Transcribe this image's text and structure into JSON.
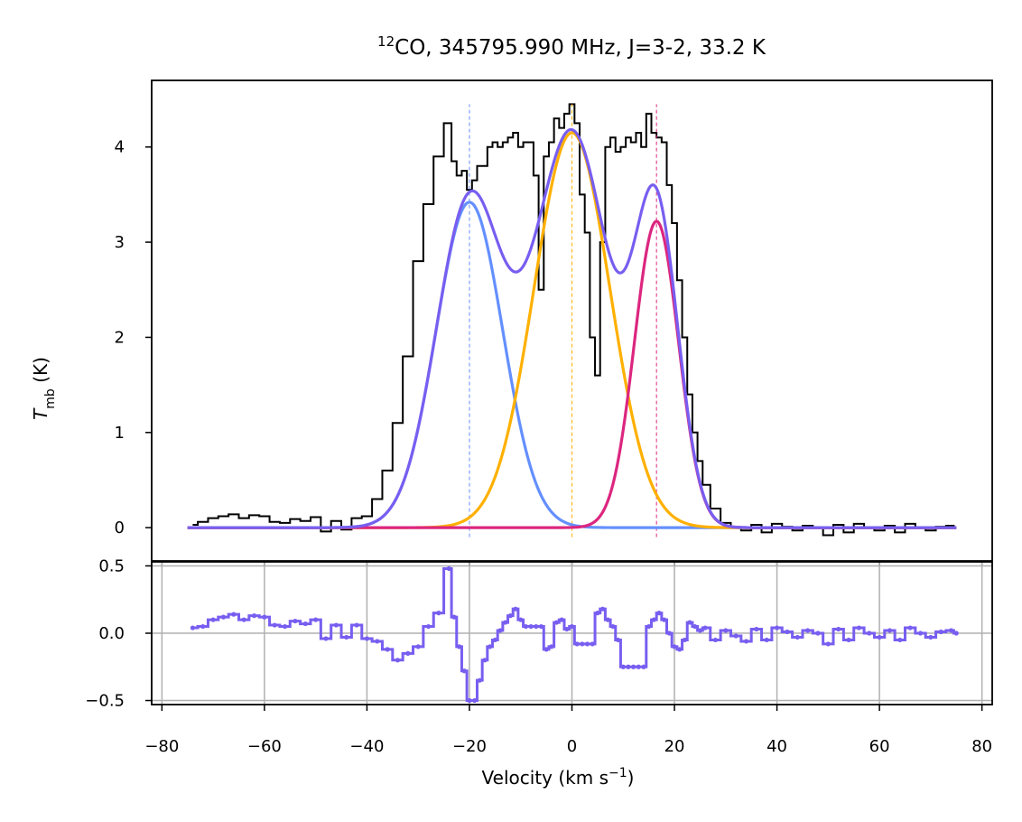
{
  "chart_data": [
    {
      "type": "line",
      "panel": "spectrum",
      "title": "12CO, 345795.990 MHz, J=3-2, 33.2 K",
      "title_parts": {
        "sup": "12",
        "rest": "CO, 345795.990 MHz, J=3-2, 33.2 K"
      },
      "xlabel": "",
      "ylabel": "T_mb (K)",
      "ylabel_parts": {
        "main": "T",
        "sub": "mb",
        "unit": " (K)"
      },
      "xlim": [
        -82,
        82
      ],
      "ylim": [
        -0.35,
        4.7
      ],
      "yticks": [
        0,
        1,
        2,
        3,
        4
      ],
      "ytick_labels": [
        "0",
        "1",
        "2",
        "3",
        "4"
      ],
      "grid": false,
      "observed_spectrum": {
        "name": "Observed T_mb",
        "style": "step",
        "color": "#000000",
        "x": [
          -74,
          -72,
          -70,
          -68,
          -66,
          -64,
          -62,
          -60,
          -58,
          -56,
          -54,
          -52,
          -50,
          -48,
          -46,
          -44,
          -42,
          -40,
          -38,
          -36,
          -34,
          -32,
          -30,
          -28,
          -26,
          -24,
          -23,
          -22,
          -21,
          -20,
          -19,
          -18,
          -17,
          -16,
          -15,
          -14,
          -13,
          -12,
          -11,
          -10,
          -9,
          -8,
          -7,
          -6,
          -5,
          -4,
          -3,
          -2,
          -1,
          0,
          1,
          2,
          3,
          4,
          5,
          6,
          7,
          8,
          9,
          10,
          11,
          12,
          13,
          14,
          15,
          16,
          17,
          18,
          19,
          20,
          21,
          22,
          23,
          24,
          25,
          26,
          28,
          30,
          32,
          34,
          36,
          38,
          40,
          42,
          44,
          46,
          48,
          50,
          52,
          54,
          56,
          58,
          60,
          62,
          64,
          66,
          68,
          70,
          72,
          74,
          75
        ],
        "y": [
          0.03,
          0.06,
          0.1,
          0.12,
          0.14,
          0.1,
          0.13,
          0.12,
          0.06,
          0.05,
          0.09,
          0.07,
          0.11,
          -0.04,
          0.07,
          -0.02,
          0.1,
          0.12,
          0.3,
          0.6,
          1.1,
          1.8,
          2.8,
          3.4,
          3.9,
          4.25,
          3.85,
          3.7,
          3.75,
          3.55,
          3.65,
          3.8,
          3.8,
          4.0,
          4.05,
          4.0,
          4.05,
          4.1,
          4.15,
          4.0,
          4.05,
          4.05,
          3.7,
          2.5,
          3.9,
          4.05,
          4.3,
          4.2,
          4.35,
          4.45,
          4.25,
          3.5,
          3.1,
          2.0,
          1.6,
          3.0,
          4.0,
          4.1,
          3.95,
          4.0,
          4.1,
          4.05,
          4.15,
          4.0,
          4.35,
          4.15,
          4.1,
          4.05,
          3.6,
          3.2,
          2.6,
          2.0,
          1.4,
          1.0,
          0.7,
          0.45,
          0.2,
          0.05,
          0.0,
          -0.03,
          0.03,
          -0.05,
          0.04,
          0.01,
          -0.03,
          0.02,
          0.0,
          -0.08,
          0.03,
          -0.05,
          0.04,
          0.0,
          -0.03,
          0.02,
          -0.05,
          0.04,
          0.0,
          -0.03,
          0.01,
          0.02,
          0.0
        ]
      },
      "gaussian_components": [
        {
          "name": "component 1",
          "color": "#648FFF",
          "center": -20.0,
          "amplitude": 3.42,
          "sigma": 6.5
        },
        {
          "name": "component 2",
          "color": "#FFB000",
          "center": 0.0,
          "amplitude": 4.15,
          "sigma": 7.4
        },
        {
          "name": "component 3",
          "color": "#DC267F",
          "center": 16.5,
          "amplitude": 3.22,
          "sigma": 4.3
        }
      ],
      "total_fit": {
        "name": "total fit",
        "color": "#785EF0"
      },
      "component_markers": [
        -20.0,
        0.0,
        16.5
      ]
    },
    {
      "type": "line",
      "panel": "residual",
      "title": "",
      "xlabel": "Velocity (km s-1)",
      "xlabel_parts": {
        "main": "Velocity (km s",
        "sup": "−1",
        "close": ")"
      },
      "ylabel": "",
      "xlim": [
        -82,
        82
      ],
      "ylim": [
        -0.53,
        0.53
      ],
      "xticks": [
        -80,
        -60,
        -40,
        -20,
        0,
        20,
        40,
        60,
        80
      ],
      "xtick_labels": [
        "−80",
        "−60",
        "−40",
        "−20",
        "0",
        "20",
        "40",
        "60",
        "80"
      ],
      "yticks": [
        -0.5,
        0.0,
        0.5
      ],
      "ytick_labels": [
        "−0.5",
        "0.0",
        "0.5"
      ],
      "grid": true,
      "residual": {
        "name": "residual",
        "style": "step",
        "color": "#785EF0",
        "x": [
          -74,
          -72,
          -70,
          -68,
          -66,
          -64,
          -62,
          -60,
          -58,
          -56,
          -54,
          -52,
          -50,
          -48,
          -46,
          -44,
          -42,
          -40,
          -38,
          -36,
          -34,
          -32,
          -30,
          -28,
          -26,
          -24,
          -23,
          -22,
          -21,
          -20,
          -19,
          -18,
          -17,
          -16,
          -15,
          -14,
          -13,
          -12,
          -11,
          -10,
          -9,
          -8,
          -7,
          -6,
          -5,
          -4,
          -3,
          -2,
          -1,
          0,
          1,
          2,
          3,
          4,
          5,
          6,
          7,
          8,
          9,
          10,
          11,
          12,
          13,
          14,
          15,
          16,
          17,
          18,
          19,
          20,
          21,
          22,
          23,
          24,
          25,
          26,
          28,
          30,
          32,
          34,
          36,
          38,
          40,
          42,
          44,
          46,
          48,
          50,
          52,
          54,
          56,
          58,
          60,
          62,
          64,
          66,
          68,
          70,
          72,
          74,
          75
        ],
        "y": [
          0.04,
          0.05,
          0.1,
          0.12,
          0.14,
          0.1,
          0.13,
          0.12,
          0.06,
          0.05,
          0.09,
          0.07,
          0.1,
          -0.04,
          0.06,
          -0.03,
          0.06,
          -0.04,
          -0.06,
          -0.12,
          -0.2,
          -0.15,
          -0.1,
          0.05,
          0.15,
          0.48,
          0.12,
          -0.1,
          -0.28,
          -0.5,
          -0.5,
          -0.35,
          -0.2,
          -0.1,
          -0.05,
          0.02,
          0.08,
          0.13,
          0.18,
          0.1,
          0.05,
          0.05,
          0.05,
          0.05,
          -0.12,
          -0.1,
          0.08,
          0.1,
          0.03,
          0.05,
          -0.08,
          -0.08,
          -0.08,
          -0.08,
          0.15,
          0.18,
          0.1,
          0.05,
          -0.05,
          -0.25,
          -0.25,
          -0.25,
          -0.25,
          -0.25,
          0.05,
          0.1,
          0.15,
          0.1,
          0.0,
          -0.1,
          -0.12,
          -0.05,
          0.08,
          0.05,
          0.02,
          0.04,
          -0.05,
          0.02,
          -0.02,
          -0.06,
          0.03,
          -0.05,
          0.04,
          0.01,
          -0.03,
          0.02,
          0.0,
          -0.08,
          0.03,
          -0.05,
          0.04,
          0.0,
          -0.03,
          0.02,
          -0.05,
          0.04,
          0.0,
          -0.03,
          0.01,
          0.02,
          0.0
        ]
      }
    }
  ]
}
